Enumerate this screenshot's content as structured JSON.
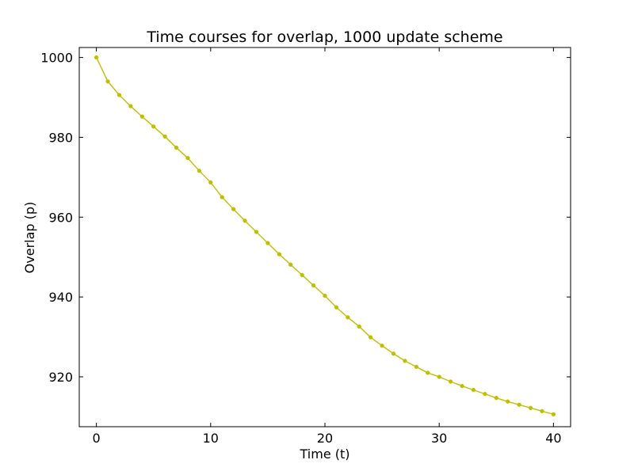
{
  "chart_data": {
    "type": "line",
    "title": "Time courses for overlap, 1000 update scheme",
    "xlabel": "Time (t)",
    "ylabel": "Overlap (p)",
    "xlim": [
      -1.5,
      41.5
    ],
    "ylim": [
      907.5,
      1002.5
    ],
    "xticks": [
      0,
      10,
      20,
      30,
      40
    ],
    "yticks": [
      920,
      940,
      960,
      980,
      1000
    ],
    "grid": false,
    "series": [
      {
        "color": "#bfbf00",
        "marker": "dot",
        "x": [
          0,
          1,
          2,
          3,
          4,
          5,
          6,
          7,
          8,
          9,
          10,
          11,
          12,
          13,
          14,
          15,
          16,
          17,
          18,
          19,
          20,
          21,
          22,
          23,
          24,
          25,
          26,
          27,
          28,
          29,
          30,
          31,
          32,
          33,
          34,
          35,
          36,
          37,
          38,
          39,
          40
        ],
        "values": [
          1000,
          994.0,
          990.6,
          987.8,
          985.2,
          982.7,
          980.2,
          977.4,
          974.8,
          971.6,
          968.7,
          965.0,
          962.0,
          959.1,
          956.3,
          953.5,
          950.7,
          948.1,
          945.5,
          942.9,
          940.3,
          937.4,
          934.9,
          932.6,
          929.9,
          927.8,
          925.8,
          924.0,
          922.5,
          921.0,
          920.0,
          918.8,
          917.7,
          916.7,
          915.7,
          914.7,
          913.8,
          913.0,
          912.2,
          911.4,
          910.6
        ]
      }
    ]
  }
}
